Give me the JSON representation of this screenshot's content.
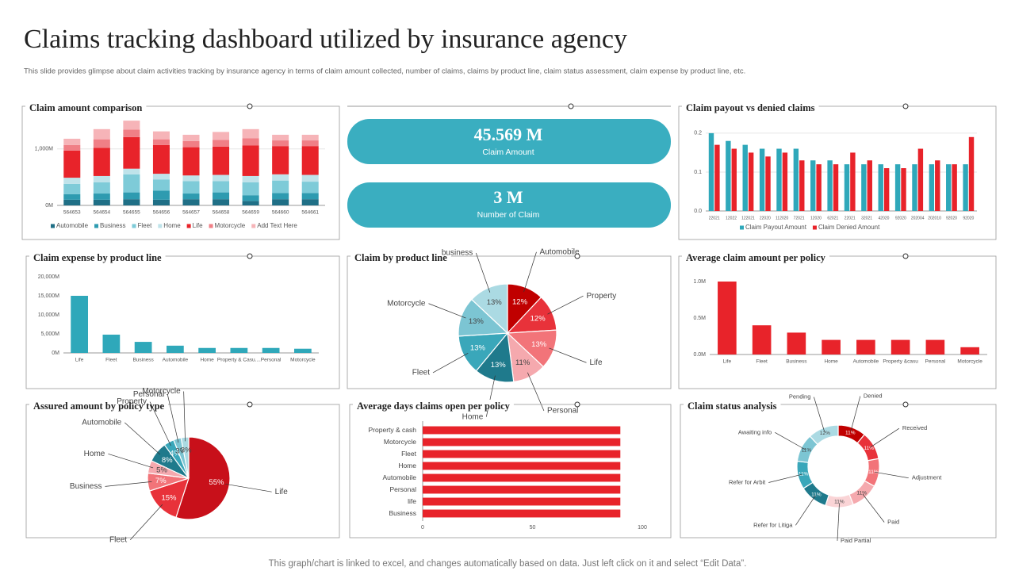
{
  "title": "Claims tracking dashboard utilized by insurance agency",
  "subtitle": "This slide provides glimpse about claim activities tracking by insurance agency in terms of claim amount collected, number of claims, claims by product line, claim status assessment, claim expense by product line, etc.",
  "footer": "This graph/chart is linked to excel, and changes automatically based on data. Just left click on it and select “Edit Data”.",
  "kpis": [
    {
      "value": "45.569 M",
      "label": "Claim Amount"
    },
    {
      "value": "3 M",
      "label": "Number of Claim"
    }
  ],
  "chart_data": [
    {
      "type": "stacked_bar",
      "title": "Claim amount comparison",
      "categories": [
        "564653",
        "564654",
        "564655",
        "564656",
        "564657",
        "564658",
        "564659",
        "564660",
        "564661"
      ],
      "series": [
        {
          "name": "Automobile",
          "color": "#1f6f86",
          "values": [
            100,
            100,
            110,
            100,
            110,
            110,
            80,
            110,
            110
          ]
        },
        {
          "name": "Business",
          "color": "#2e9bb0",
          "values": [
            100,
            110,
            120,
            160,
            100,
            120,
            100,
            110,
            110
          ]
        },
        {
          "name": "Fleet",
          "color": "#7ecbd8",
          "values": [
            180,
            200,
            320,
            200,
            220,
            200,
            230,
            220,
            200
          ]
        },
        {
          "name": "Home",
          "color": "#bfe3ea",
          "values": [
            110,
            110,
            100,
            100,
            100,
            110,
            110,
            110,
            120
          ]
        },
        {
          "name": "Life",
          "color": "#e8232a",
          "values": [
            480,
            500,
            560,
            510,
            500,
            500,
            540,
            500,
            510
          ]
        },
        {
          "name": "Motorcycle",
          "color": "#f07f86",
          "values": [
            100,
            150,
            130,
            100,
            110,
            120,
            130,
            100,
            100
          ]
        },
        {
          "name": "Add Text Here",
          "color": "#f6b4b8",
          "values": [
            110,
            180,
            160,
            140,
            110,
            140,
            160,
            100,
            100
          ]
        }
      ],
      "ylim": [
        0,
        1600
      ],
      "yticks": [
        {
          "value": 0,
          "label": "0M"
        },
        {
          "value": 1000,
          "label": "1,000M"
        }
      ],
      "grid": true
    },
    {
      "type": "grouped_bar",
      "title": "Claim payout vs denied claims",
      "categories": [
        "22021",
        "12022",
        "122021",
        "22020",
        "112020",
        "72021",
        "12020",
        "62021",
        "22021",
        "32021",
        "42020",
        "92020",
        "202004",
        "202010",
        "92020",
        "92020"
      ],
      "series": [
        {
          "name": "Claim Payout Amount",
          "color": "#2fa8ba",
          "values": [
            0.2,
            0.18,
            0.17,
            0.16,
            0.16,
            0.16,
            0.13,
            0.13,
            0.12,
            0.12,
            0.12,
            0.12,
            0.12,
            0.12,
            0.12,
            0.12
          ]
        },
        {
          "name": "Claim Denied Amount",
          "color": "#e8232a",
          "values": [
            0.17,
            0.16,
            0.15,
            0.14,
            0.15,
            0.13,
            0.12,
            0.12,
            0.15,
            0.13,
            0.11,
            0.11,
            0.16,
            0.13,
            0.12,
            0.19
          ]
        }
      ],
      "ylim": [
        0,
        0.21
      ],
      "yticks": [
        {
          "value": 0,
          "label": "0.0"
        },
        0.1,
        0.2
      ],
      "grid": true
    },
    {
      "type": "bar",
      "title": "Claim expense by product line",
      "categories": [
        "Life",
        "Fleet",
        "Business",
        "Automobile",
        "Home",
        "Property & Casu....",
        "Personal",
        "Motorcycle"
      ],
      "values": [
        15000,
        4800,
        2900,
        1900,
        1300,
        1300,
        1300,
        1100
      ],
      "color": "#2fa8ba",
      "ylim": [
        0,
        20000
      ],
      "yticks": [
        {
          "value": 0,
          "label": "0M"
        },
        {
          "value": 5000,
          "label": "5,000M"
        },
        {
          "value": 10000,
          "label": "10,000M"
        },
        {
          "value": 15000,
          "label": "15,000M"
        },
        {
          "value": 20000,
          "label": "20,000M"
        }
      ],
      "grid": false
    },
    {
      "type": "pie",
      "title": "Claim by product line",
      "categories": [
        "Automobile",
        "Property",
        "Life",
        "Personal",
        "Home",
        "Fleet",
        "Motorcycle",
        "business"
      ],
      "values": [
        12,
        12,
        13,
        11,
        13,
        13,
        13,
        13
      ],
      "value_labels": [
        "12%",
        "12%",
        "13%",
        "11%",
        "13%",
        "13%",
        "13%",
        "13%"
      ],
      "colors": [
        "#c00000",
        "#e8323a",
        "#f27479",
        "#f5a9ae",
        "#1f7a8c",
        "#3aa7ba",
        "#7cc5d3",
        "#abdae3"
      ]
    },
    {
      "type": "bar",
      "title": "Average claim amount per policy",
      "categories": [
        "Life",
        "Fleet",
        "Business",
        "Home",
        "Automobile",
        "Property &casu",
        "Personal",
        "Motorcycle"
      ],
      "values": [
        1.0,
        0.4,
        0.3,
        0.2,
        0.2,
        0.2,
        0.2,
        0.1
      ],
      "color": "#e8232a",
      "ylim": [
        0,
        1.0
      ],
      "yticks": [
        {
          "value": 0,
          "label": "0.0M"
        },
        {
          "value": 0.5,
          "label": "0.5M"
        },
        {
          "value": 1.0,
          "label": "1.0M"
        }
      ],
      "grid": false
    },
    {
      "type": "pie",
      "title": "Assured amount by policy type",
      "categories": [
        "Life",
        "Fleet",
        "Business",
        "Home",
        "Automobile",
        "Property",
        "Personal",
        "Motorcycle"
      ],
      "values": [
        55,
        15,
        7,
        5,
        8,
        4,
        3,
        3
      ],
      "value_labels": [
        "55%",
        "15%",
        "7%",
        "5%",
        "8%",
        "4%",
        "3%",
        "3%"
      ],
      "colors": [
        "#c8101a",
        "#e8323a",
        "#f27479",
        "#f5a9ae",
        "#1f7a8c",
        "#3aa7ba",
        "#7cc5d3",
        "#abdae3"
      ]
    },
    {
      "type": "horizontal_bar",
      "title": "Average days claims open per policy",
      "categories": [
        "Property & cash",
        "Motorcycle",
        "Fleet",
        "Home",
        "Automobile",
        "Personal",
        "life",
        "Business"
      ],
      "values": [
        90,
        90,
        90,
        90,
        90,
        90,
        90,
        90
      ],
      "color": "#e8232a",
      "xlim": [
        0,
        100
      ],
      "xticks": [
        0,
        50,
        100
      ]
    },
    {
      "type": "donut",
      "title": "Claim status analysis",
      "categories": [
        "Denied",
        "Received",
        "Adjustment",
        "Paid",
        "Paid Partial",
        "Refer for Litiga",
        "Refer for Arbit",
        "Awaiting info",
        "Pending"
      ],
      "values": [
        11,
        11,
        11,
        11,
        11,
        11,
        11,
        11,
        12
      ],
      "value_labels": [
        "11%",
        "11%",
        "11%",
        "11%",
        "11%",
        "11%",
        "11%",
        "11%",
        "12%"
      ],
      "colors": [
        "#c00000",
        "#e8323a",
        "#f27479",
        "#f5a9ae",
        "#fad4d6",
        "#1f7a8c",
        "#3aa7ba",
        "#7cc5d3",
        "#abdae3"
      ]
    }
  ]
}
